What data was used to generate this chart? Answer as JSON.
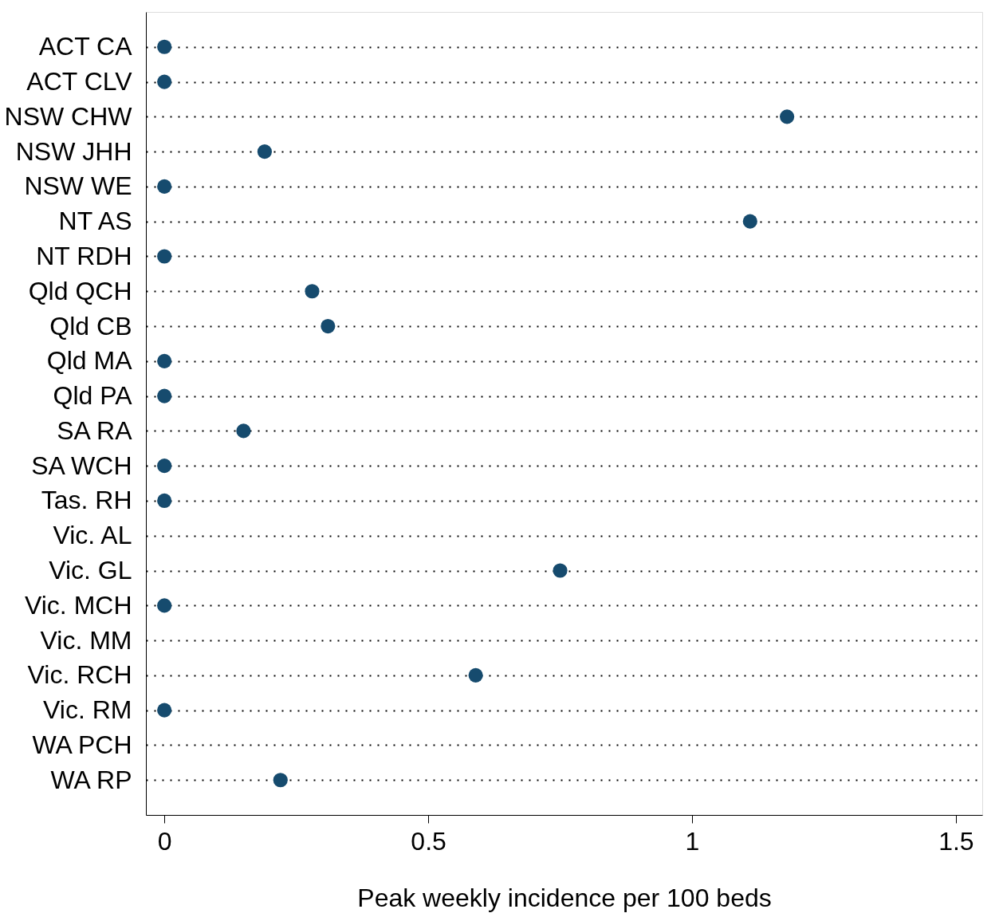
{
  "chart_data": {
    "type": "scatter",
    "orientation": "horizontal",
    "categories": [
      "ACT CA",
      "ACT CLV",
      "NSW CHW",
      "NSW JHH",
      "NSW WE",
      "NT AS",
      "NT RDH",
      "Qld QCH",
      "Qld CB",
      "Qld MA",
      "Qld PA",
      "SA RA",
      "SA WCH",
      "Tas. RH",
      "Vic. AL",
      "Vic. GL",
      "Vic. MCH",
      "Vic. MM",
      "Vic. RCH",
      "Vic. RM",
      "WA PCH",
      "WA RP"
    ],
    "series": [
      {
        "color": "#164b6e",
        "values": [
          0,
          0,
          1.18,
          0.19,
          0,
          1.11,
          0,
          0.28,
          0.31,
          0,
          0,
          0.15,
          0,
          0,
          null,
          0.75,
          0,
          null,
          0.59,
          0,
          null,
          0.22
        ]
      }
    ],
    "xlabel": "Peak weekly incidence per 100 beds",
    "xlim": [
      -0.035,
      1.55
    ],
    "xticks": [
      0,
      0.5,
      1,
      1.5
    ],
    "grid": "y",
    "marker": "circle",
    "legend": false
  }
}
